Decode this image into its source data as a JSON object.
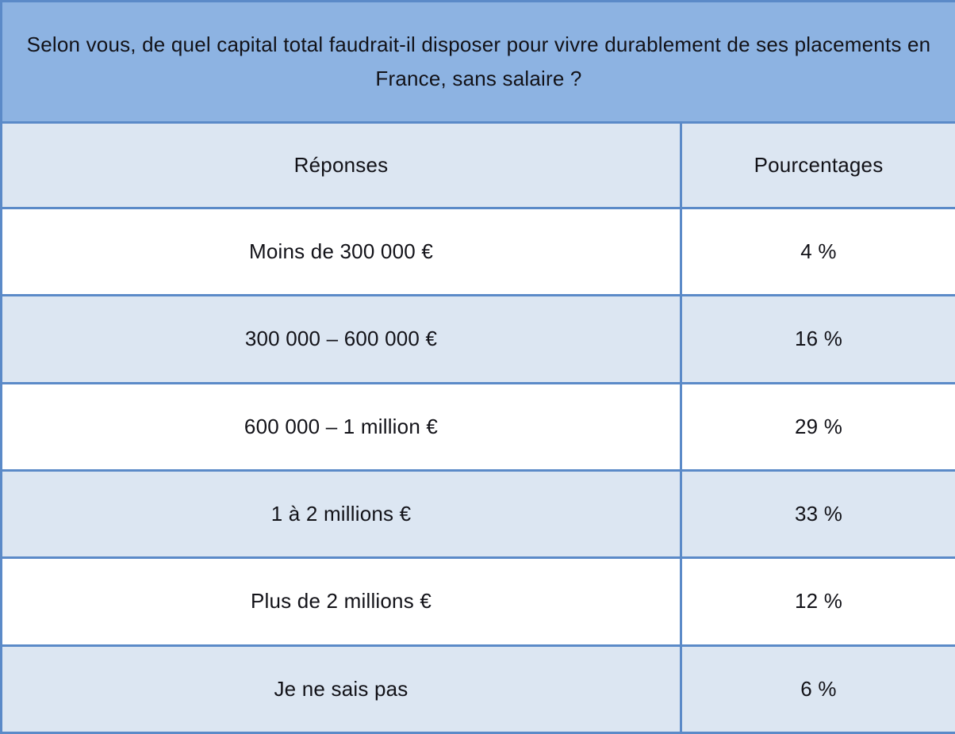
{
  "table": {
    "question": "Selon vous, de quel capital total faudrait-il disposer pour vivre durablement de ses placements en France, sans salaire ?",
    "columns": [
      "Réponses",
      "Pourcentages"
    ],
    "rows": [
      {
        "reponse": "Moins de 300 000 €",
        "pourcentage": "4 %"
      },
      {
        "reponse": "300 000 – 600 000 €",
        "pourcentage": "16 %"
      },
      {
        "reponse": "600 000 – 1 million €",
        "pourcentage": "29 %"
      },
      {
        "reponse": "1 à 2 millions €",
        "pourcentage": "33 %"
      },
      {
        "reponse": "Plus de 2 millions €",
        "pourcentage": "12 %"
      },
      {
        "reponse": "Je ne sais pas",
        "pourcentage": "6 %"
      }
    ]
  },
  "chart_data": {
    "type": "table",
    "title": "Selon vous, de quel capital total faudrait-il disposer pour vivre durablement de ses placements en France, sans salaire ?",
    "columns": [
      "Réponses",
      "Pourcentages"
    ],
    "categories": [
      "Moins de 300 000 €",
      "300 000 – 600 000 €",
      "600 000 – 1 million €",
      "1 à 2 millions €",
      "Plus de 2 millions €",
      "Je ne sais pas"
    ],
    "values": [
      4,
      16,
      29,
      33,
      12,
      6
    ],
    "unit": "%"
  },
  "colors": {
    "header_band": "#8db3e2",
    "shaded_row": "#dce6f2",
    "white_row": "#ffffff",
    "border": "#5b8ac8",
    "text": "#121218"
  }
}
